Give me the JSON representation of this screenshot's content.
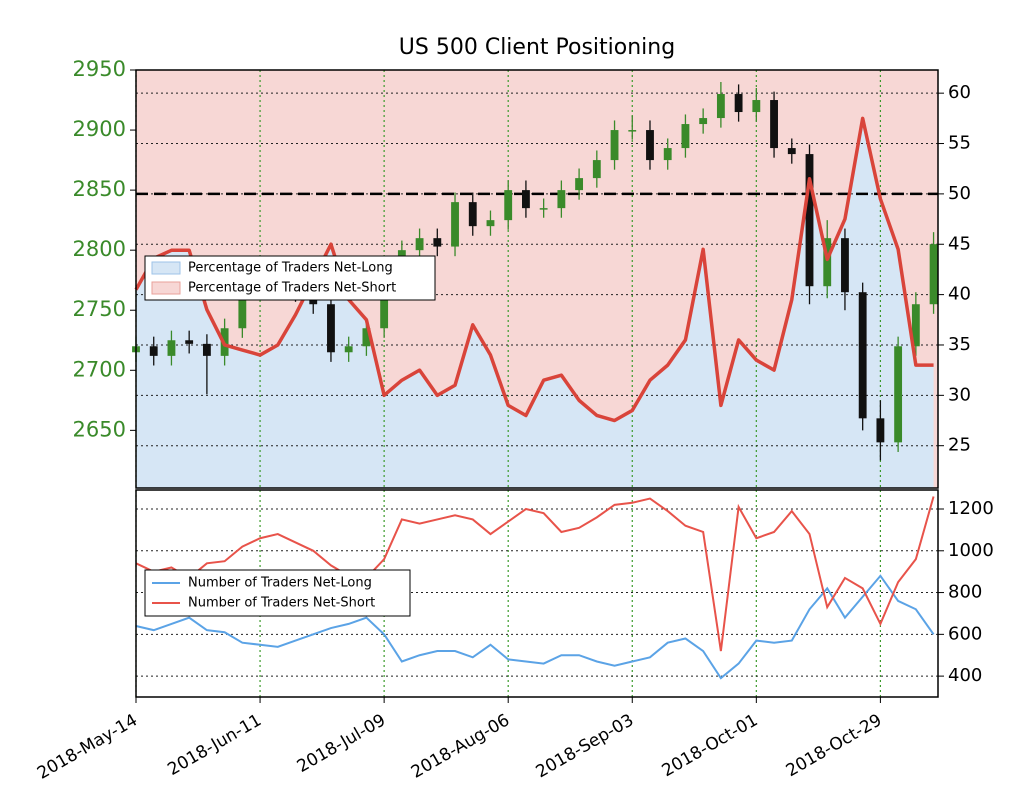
{
  "chart_data": [
    {
      "type": "candlestick",
      "title": "US 500 Client Positioning",
      "x": [
        "2018-May-14",
        "2018-May-18",
        "2018-May-22",
        "2018-May-26",
        "2018-May-30",
        "2018-Jun-03",
        "2018-Jun-07",
        "2018-Jun-11",
        "2018-Jun-15",
        "2018-Jun-19",
        "2018-Jun-23",
        "2018-Jun-27",
        "2018-Jul-01",
        "2018-Jul-05",
        "2018-Jul-09",
        "2018-Jul-13",
        "2018-Jul-17",
        "2018-Jul-21",
        "2018-Jul-25",
        "2018-Jul-29",
        "2018-Aug-02",
        "2018-Aug-06",
        "2018-Aug-10",
        "2018-Aug-14",
        "2018-Aug-18",
        "2018-Aug-22",
        "2018-Aug-26",
        "2018-Aug-30",
        "2018-Sep-03",
        "2018-Sep-07",
        "2018-Sep-11",
        "2018-Sep-15",
        "2018-Sep-19",
        "2018-Sep-23",
        "2018-Sep-27",
        "2018-Oct-01",
        "2018-Oct-05",
        "2018-Oct-09",
        "2018-Oct-13",
        "2018-Oct-17",
        "2018-Oct-21",
        "2018-Oct-25",
        "2018-Oct-29",
        "2018-Nov-02",
        "2018-Nov-06",
        "2018-Nov-10"
      ],
      "open": [
        2715,
        2720,
        2712,
        2725,
        2722,
        2712,
        2735,
        2770,
        2780,
        2778,
        2765,
        2755,
        2715,
        2720,
        2735,
        2780,
        2800,
        2810,
        2803,
        2840,
        2820,
        2825,
        2850,
        2835,
        2835,
        2850,
        2860,
        2875,
        2900,
        2900,
        2875,
        2885,
        2905,
        2910,
        2930,
        2915,
        2925,
        2885,
        2880,
        2770,
        2810,
        2765,
        2660,
        2640,
        2720,
        2755
      ],
      "high": [
        2728,
        2728,
        2733,
        2733,
        2730,
        2743,
        2778,
        2788,
        2788,
        2786,
        2773,
        2763,
        2728,
        2743,
        2788,
        2808,
        2818,
        2818,
        2848,
        2848,
        2833,
        2858,
        2858,
        2843,
        2858,
        2868,
        2883,
        2908,
        2912,
        2908,
        2893,
        2913,
        2918,
        2940,
        2938,
        2935,
        2932,
        2893,
        2888,
        2825,
        2818,
        2773,
        2675,
        2728,
        2765,
        2815
      ],
      "low": [
        2707,
        2704,
        2704,
        2714,
        2680,
        2704,
        2727,
        2762,
        2770,
        2757,
        2747,
        2707,
        2707,
        2712,
        2727,
        2772,
        2792,
        2795,
        2795,
        2812,
        2812,
        2817,
        2827,
        2827,
        2827,
        2842,
        2852,
        2867,
        2892,
        2867,
        2867,
        2877,
        2897,
        2902,
        2907,
        2907,
        2877,
        2872,
        2755,
        2760,
        2750,
        2650,
        2625,
        2632,
        2712,
        2747
      ],
      "close": [
        2720,
        2712,
        2725,
        2722,
        2712,
        2735,
        2770,
        2780,
        2778,
        2765,
        2755,
        2715,
        2720,
        2735,
        2780,
        2800,
        2810,
        2803,
        2840,
        2820,
        2825,
        2850,
        2835,
        2835,
        2850,
        2860,
        2875,
        2900,
        2900,
        2875,
        2885,
        2905,
        2910,
        2930,
        2915,
        2925,
        2885,
        2880,
        2770,
        2810,
        2765,
        2660,
        2640,
        2720,
        2755,
        2805
      ],
      "up_color": "#3a8a2a",
      "down_color": "#111111",
      "tick_color": "#3a8a2a",
      "xlim": [
        "2018-May-14",
        "2018-Nov-11"
      ],
      "ylim": [
        2602,
        2950
      ],
      "yticks": [
        2650,
        2700,
        2750,
        2800,
        2850,
        2900,
        2950
      ],
      "y2lim": [
        20.8,
        62.3
      ],
      "y2ticks": [
        25,
        30,
        35,
        40,
        45,
        50,
        55,
        60
      ],
      "reference_line": 50,
      "series": [
        {
          "name": "Percentage of Traders Net-Long",
          "color": "#d6e6f5",
          "line_color": "#d9443a",
          "axis": "y2",
          "values": [
            40.5,
            43.6,
            44.4,
            44.4,
            38.5,
            35,
            34.5,
            34,
            35,
            38,
            41.5,
            45,
            39.5,
            37.5,
            30,
            31.5,
            32.5,
            30,
            31,
            37,
            34,
            29,
            28,
            31.5,
            32,
            29.5,
            28,
            27.5,
            28.5,
            31.5,
            33,
            35.5,
            44.5,
            29,
            35.5,
            33.5,
            32.5,
            39.5,
            51.5,
            43.5,
            47.5,
            57.5,
            49.5,
            44.5,
            33,
            33
          ]
        }
      ],
      "background": {
        "name": "Percentage of Traders Net-Short",
        "color": "#f7d7d5"
      },
      "grid": true
    },
    {
      "type": "line",
      "x": [
        "2018-May-14",
        "2018-May-18",
        "2018-May-22",
        "2018-May-26",
        "2018-May-30",
        "2018-Jun-03",
        "2018-Jun-07",
        "2018-Jun-11",
        "2018-Jun-15",
        "2018-Jun-19",
        "2018-Jun-23",
        "2018-Jun-27",
        "2018-Jul-01",
        "2018-Jul-05",
        "2018-Jul-09",
        "2018-Jul-13",
        "2018-Jul-17",
        "2018-Jul-21",
        "2018-Jul-25",
        "2018-Jul-29",
        "2018-Aug-02",
        "2018-Aug-06",
        "2018-Aug-10",
        "2018-Aug-14",
        "2018-Aug-18",
        "2018-Aug-22",
        "2018-Aug-26",
        "2018-Aug-30",
        "2018-Sep-03",
        "2018-Sep-07",
        "2018-Sep-11",
        "2018-Sep-15",
        "2018-Sep-19",
        "2018-Sep-23",
        "2018-Sep-27",
        "2018-Oct-01",
        "2018-Oct-05",
        "2018-Oct-09",
        "2018-Oct-13",
        "2018-Oct-17",
        "2018-Oct-21",
        "2018-Oct-25",
        "2018-Oct-29",
        "2018-Nov-02",
        "2018-Nov-06",
        "2018-Nov-10"
      ],
      "xlim": [
        "2018-May-14",
        "2018-Nov-11"
      ],
      "xticks": [
        "2018-May-14",
        "2018-Jun-11",
        "2018-Jul-09",
        "2018-Aug-06",
        "2018-Sep-03",
        "2018-Oct-01",
        "2018-Oct-29"
      ],
      "ylim": [
        300,
        1291
      ],
      "yticks": [
        400,
        600,
        800,
        1000,
        1200
      ],
      "series": [
        {
          "name": "Number of Traders Net-Long",
          "color": "#5ba3e6",
          "values": [
            640,
            620,
            650,
            680,
            620,
            610,
            560,
            550,
            540,
            570,
            600,
            630,
            650,
            680,
            600,
            470,
            500,
            520,
            520,
            490,
            550,
            480,
            470,
            460,
            500,
            500,
            470,
            450,
            470,
            490,
            560,
            580,
            520,
            390,
            460,
            570,
            560,
            570,
            720,
            820,
            680,
            780,
            880,
            760,
            720,
            600
          ]
        },
        {
          "name": "Number of Traders Net-Short",
          "color": "#e8534a",
          "values": [
            940,
            900,
            920,
            870,
            940,
            950,
            1020,
            1060,
            1080,
            1040,
            1000,
            930,
            880,
            870,
            960,
            1150,
            1130,
            1150,
            1170,
            1150,
            1080,
            1140,
            1200,
            1180,
            1090,
            1110,
            1160,
            1220,
            1230,
            1250,
            1190,
            1120,
            1090,
            520,
            1210,
            1060,
            1090,
            1190,
            1080,
            730,
            870,
            820,
            650,
            850,
            960,
            1260
          ]
        }
      ],
      "grid": true
    }
  ]
}
